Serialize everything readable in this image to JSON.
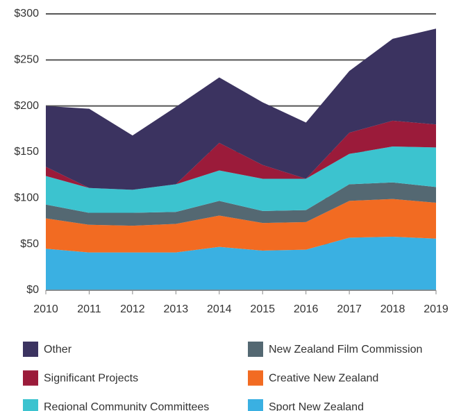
{
  "chart_data": {
    "type": "stacked_area",
    "categories": [
      "2010",
      "2011",
      "2012",
      "2013",
      "2014",
      "2015",
      "2016",
      "2017",
      "2018",
      "2019"
    ],
    "series": [
      {
        "name": "Sport New Zealand",
        "color": "#3ab0e2",
        "values": [
          45,
          41,
          41,
          41,
          47,
          43,
          44,
          57,
          58,
          56
        ]
      },
      {
        "name": "Creative New Zealand",
        "color": "#f26b22",
        "values": [
          33,
          30,
          29,
          31,
          34,
          30,
          30,
          40,
          41,
          39
        ]
      },
      {
        "name": "New Zealand Film Commission",
        "color": "#546872",
        "values": [
          15,
          13,
          14,
          13,
          16,
          13,
          13,
          18,
          18,
          17
        ]
      },
      {
        "name": "Regional Community Committees",
        "color": "#3cc3cf",
        "values": [
          31,
          27,
          25,
          30,
          33,
          35,
          34,
          33,
          39,
          43
        ]
      },
      {
        "name": "Significant Projects",
        "color": "#9b1b3a",
        "values": [
          10,
          0,
          0,
          0,
          30,
          15,
          0,
          23,
          28,
          25
        ]
      },
      {
        "name": "Other",
        "color": "#3b3360",
        "values": [
          66,
          86,
          59,
          84,
          71,
          68,
          61,
          67,
          89,
          104
        ]
      }
    ],
    "ylim": [
      0,
      300
    ],
    "yticks": [
      {
        "value": 0,
        "label": "$0"
      },
      {
        "value": 50,
        "label": "$50"
      },
      {
        "value": 100,
        "label": "$100"
      },
      {
        "value": 150,
        "label": "$150"
      },
      {
        "value": 200,
        "label": "$200"
      },
      {
        "value": 250,
        "label": "$250"
      },
      {
        "value": 300,
        "label": "$300"
      }
    ],
    "grid": true
  }
}
